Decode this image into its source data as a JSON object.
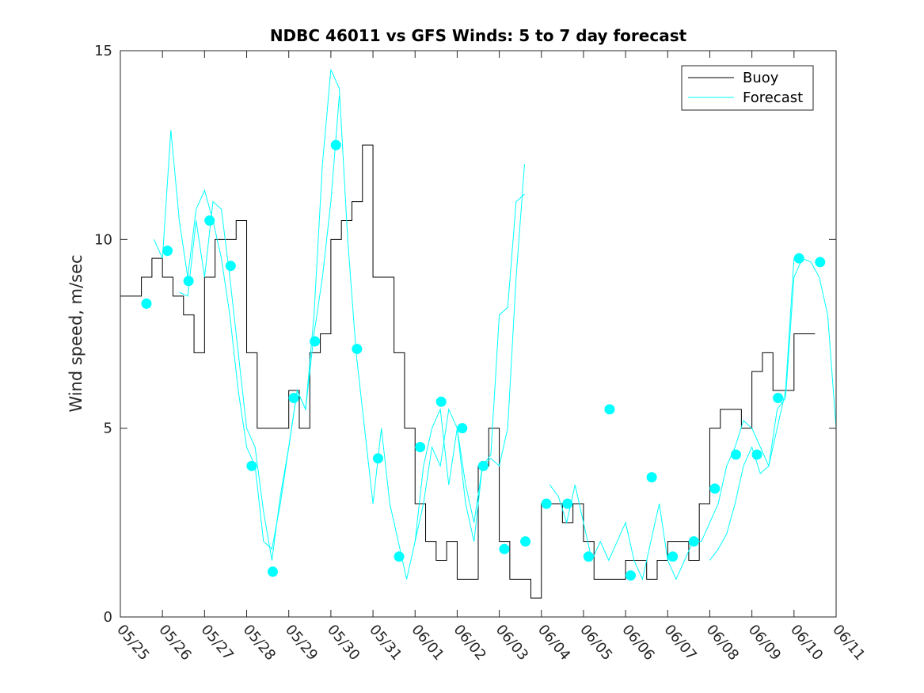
{
  "chart_data": {
    "type": "line",
    "title": "NDBC 46011 vs GFS Winds: 5 to 7 day forecast",
    "xlabel": "",
    "ylabel": "Wind speed, m/sec",
    "xlim": [
      0,
      17
    ],
    "ylim": [
      0,
      15
    ],
    "x_ticks": [
      0,
      1,
      2,
      3,
      4,
      5,
      6,
      7,
      8,
      9,
      10,
      11,
      12,
      13,
      14,
      15,
      16,
      17
    ],
    "x_tick_labels": [
      "05/25",
      "05/26",
      "05/27",
      "05/28",
      "05/29",
      "05/30",
      "05/31",
      "06/01",
      "06/02",
      "06/03",
      "06/04",
      "06/05",
      "06/06",
      "06/07",
      "06/08",
      "06/09",
      "06/10",
      "06/11"
    ],
    "y_ticks": [
      0,
      5,
      10,
      15
    ],
    "legend": {
      "position": "top-right",
      "entries": [
        "Buoy",
        "Forecast"
      ]
    },
    "grid": false,
    "colors": {
      "buoy": "#000000",
      "forecast": "#00ffff"
    },
    "series": [
      {
        "name": "Buoy",
        "color": "#000000",
        "x": [
          0.0,
          0.25,
          0.5,
          0.75,
          1.0,
          1.25,
          1.5,
          1.75,
          2.0,
          2.25,
          2.5,
          2.75,
          3.0,
          3.25,
          3.5,
          3.75,
          4.0,
          4.25,
          4.5,
          4.75,
          5.0,
          5.25,
          5.5,
          5.75,
          6.0,
          6.25,
          6.5,
          6.75,
          7.0,
          7.25,
          7.5,
          7.75,
          8.0,
          8.25,
          8.5,
          8.75,
          9.0,
          9.25,
          9.5,
          9.75,
          10.0,
          10.25,
          10.5,
          10.75,
          11.0,
          11.25,
          11.5,
          11.75,
          12.0,
          12.25,
          12.5,
          12.75,
          13.0,
          13.25,
          13.5,
          13.75,
          14.0,
          14.25,
          14.5,
          14.75,
          15.0,
          15.25,
          15.5,
          15.75,
          16.0,
          16.25
        ],
        "y": [
          8.5,
          8.5,
          9,
          9.5,
          9,
          8.5,
          8,
          7,
          9,
          10,
          10,
          10.5,
          7,
          5,
          5,
          5,
          6,
          5,
          7,
          7.5,
          10,
          10.5,
          11,
          12.5,
          9,
          9,
          7,
          5,
          3,
          2,
          1.5,
          2,
          1,
          1,
          4,
          5,
          2,
          1,
          1,
          0.5,
          3,
          3,
          2.5,
          3,
          2,
          1,
          1,
          1,
          1.5,
          1.5,
          1,
          1.5,
          2,
          2,
          1.5,
          3,
          5,
          5.5,
          5.5,
          5,
          6.5,
          7,
          6,
          6,
          7.5,
          7.5
        ]
      },
      {
        "name": "Forecast",
        "color": "#00ffff",
        "runs": [
          {
            "x": [
              0.8,
              1.0,
              1.2,
              1.4,
              1.6,
              1.8,
              2.0,
              2.2,
              2.4,
              2.6,
              2.8,
              3.0,
              3.2,
              3.4,
              3.6,
              3.8,
              4.0,
              4.2,
              4.4,
              4.6,
              4.8,
              5.0
            ],
            "y": [
              10,
              9.5,
              12.9,
              10.5,
              9,
              10.8,
              11.3,
              10.5,
              9.5,
              8,
              6,
              4.5,
              4,
              2,
              1.8,
              3,
              4.5,
              6,
              5.5,
              8,
              12,
              14.5
            ]
          },
          {
            "x": [
              1.4,
              1.6,
              1.8,
              2.0,
              2.2,
              2.4,
              2.6,
              2.8,
              3.0,
              3.2,
              3.4,
              3.6,
              3.8,
              4.0,
              4.2,
              4.4,
              4.6,
              4.8,
              5.0,
              5.2
            ],
            "y": [
              8.6,
              8.5,
              10.5,
              9,
              11,
              10.8,
              9,
              7,
              5,
              4.5,
              2.8,
              1.5,
              3.2,
              4.5,
              6,
              5.5,
              7.5,
              9,
              11,
              13.8
            ]
          },
          {
            "x": [
              5.0,
              5.2,
              5.4,
              5.6,
              5.8,
              6.0,
              6.2,
              6.4,
              6.6,
              6.8,
              7.0,
              7.2,
              7.4,
              7.6,
              7.8,
              8.0,
              8.2,
              8.4,
              8.6,
              8.8,
              9.0,
              9.2,
              9.4,
              9.6
            ],
            "y": [
              14.5,
              14,
              10,
              7,
              5,
              3,
              5,
              3,
              2,
              1,
              2,
              4,
              5,
              5.5,
              3.5,
              5,
              3,
              2,
              4,
              4.2,
              4,
              5,
              9,
              12
            ]
          },
          {
            "x": [
              7.0,
              7.2,
              7.4,
              7.6,
              7.8,
              8.0,
              8.2,
              8.4,
              8.6,
              8.8,
              9.0,
              9.2,
              9.4,
              9.6
            ],
            "y": [
              2,
              3,
              4.5,
              4,
              5.5,
              5,
              3.5,
              2.5,
              4,
              4.3,
              8,
              8.2,
              11,
              11.2
            ]
          },
          {
            "x": [
              10.2,
              10.4,
              10.6,
              10.8,
              11.0,
              11.2,
              11.4,
              11.6,
              11.8,
              12.0,
              12.2,
              12.4,
              12.6,
              12.8,
              13.0,
              13.2,
              13.4,
              13.6,
              13.8,
              14.0,
              14.2,
              14.4,
              14.6,
              14.8,
              15.0,
              15.2,
              15.4,
              15.6,
              15.8,
              16.0
            ],
            "y": [
              3.5,
              3.2,
              2.5,
              3.5,
              2.5,
              1.5,
              2,
              1.5,
              2,
              2.5,
              1.5,
              1,
              2,
              3,
              1.5,
              1,
              1.5,
              2,
              2,
              2.5,
              3,
              4,
              4.5,
              5.2,
              5,
              4.5,
              4,
              5,
              6,
              9.5
            ]
          },
          {
            "x": [
              14.0,
              14.2,
              14.4,
              14.6,
              14.8,
              15.0,
              15.2,
              15.4,
              15.6,
              15.8,
              16.0,
              16.2,
              16.4,
              16.6,
              16.8,
              17.0
            ],
            "y": [
              1.5,
              1.8,
              2.2,
              3,
              4,
              4.5,
              3.8,
              4,
              5.5,
              5.8,
              9,
              9.5,
              9.4,
              9,
              8,
              5
            ]
          }
        ],
        "markers": {
          "x": [
            0.62,
            1.12,
            1.62,
            2.12,
            2.62,
            3.12,
            3.62,
            4.12,
            4.62,
            5.12,
            5.62,
            6.12,
            6.62,
            7.12,
            7.62,
            8.12,
            8.62,
            9.12,
            9.62,
            10.12,
            10.62,
            11.12,
            11.62,
            12.12,
            12.62,
            13.12,
            13.62,
            14.12,
            14.62,
            15.12,
            15.62,
            16.12,
            16.62
          ],
          "y": [
            8.3,
            9.7,
            8.9,
            10.5,
            9.3,
            4.0,
            1.2,
            5.8,
            7.3,
            12.5,
            7.1,
            4.2,
            1.6,
            4.5,
            5.7,
            5.0,
            4.0,
            1.8,
            2.0,
            3.0,
            3.0,
            1.6,
            5.5,
            1.1,
            3.7,
            1.6,
            2.0,
            3.4,
            4.3,
            4.3,
            5.8,
            9.5,
            9.4
          ]
        }
      }
    ]
  }
}
